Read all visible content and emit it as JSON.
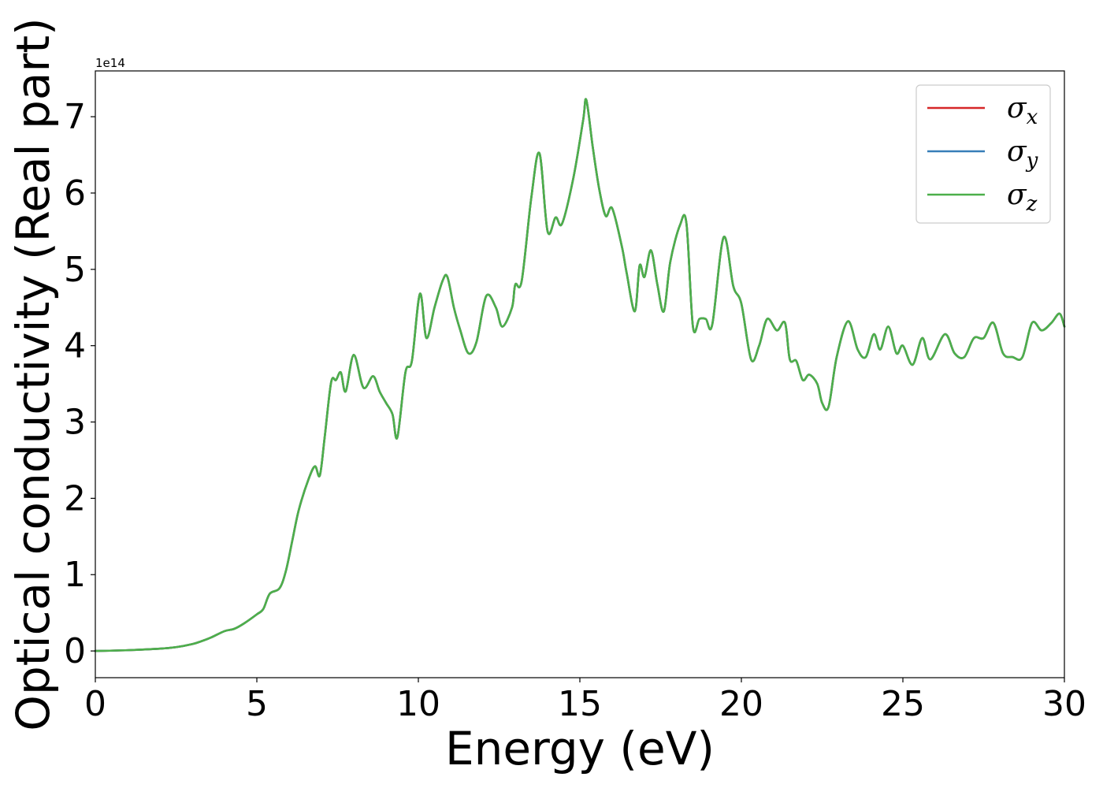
{
  "chart_data": {
    "type": "line",
    "xlabel": "Energy (eV)",
    "ylabel": "Optical conductivity (Real part)",
    "y_offset_label": "1e14",
    "y_multiplier": 100000000000000.0,
    "xlim": [
      0,
      30
    ],
    "ylim": [
      -0.35,
      7.6
    ],
    "x_ticks": [
      0,
      5,
      10,
      15,
      20,
      25,
      30
    ],
    "y_ticks": [
      0,
      1,
      2,
      3,
      4,
      5,
      6,
      7
    ],
    "grid": false,
    "legend_position": "top-right",
    "series": [
      {
        "name": "σ_x",
        "legend_symbol": "σ",
        "legend_sub": "x",
        "color": "#d62728",
        "x": [
          0,
          1,
          2,
          2.5,
          3,
          3.3,
          3.6,
          4,
          4.3,
          4.6,
          5,
          5.2,
          5.4,
          5.7,
          5.9,
          6.1,
          6.3,
          6.6,
          6.8,
          6.95,
          7.1,
          7.3,
          7.45,
          7.6,
          7.75,
          8,
          8.3,
          8.6,
          8.8,
          9,
          9.2,
          9.35,
          9.6,
          9.8,
          10.05,
          10.25,
          10.5,
          10.75,
          10.9,
          11.1,
          11.3,
          11.55,
          11.8,
          12.1,
          12.4,
          12.6,
          12.9,
          13,
          13.2,
          13.5,
          13.75,
          14,
          14.25,
          14.45,
          14.8,
          15.1,
          15.2,
          15.4,
          15.6,
          15.8,
          16,
          16.3,
          16.45,
          16.7,
          16.85,
          17,
          17.2,
          17.4,
          17.6,
          17.8,
          18.1,
          18.3,
          18.5,
          18.7,
          18.9,
          19.1,
          19.45,
          19.75,
          20,
          20.3,
          20.55,
          20.8,
          21.1,
          21.35,
          21.5,
          21.7,
          21.9,
          22.1,
          22.35,
          22.5,
          22.7,
          22.95,
          23.3,
          23.6,
          23.85,
          24.1,
          24.3,
          24.55,
          24.8,
          25,
          25.3,
          25.6,
          25.85,
          26.3,
          26.6,
          26.9,
          27.2,
          27.5,
          27.8,
          28.1,
          28.4,
          28.7,
          29,
          29.3,
          29.6,
          29.85,
          30
        ],
        "y": [
          0,
          0.01,
          0.03,
          0.05,
          0.09,
          0.13,
          0.18,
          0.26,
          0.29,
          0.36,
          0.48,
          0.55,
          0.75,
          0.82,
          1.05,
          1.45,
          1.85,
          2.25,
          2.42,
          2.3,
          2.8,
          3.52,
          3.55,
          3.65,
          3.4,
          3.88,
          3.45,
          3.6,
          3.4,
          3.25,
          3.1,
          2.8,
          3.65,
          3.8,
          4.68,
          4.1,
          4.5,
          4.85,
          4.9,
          4.5,
          4.2,
          3.9,
          4.05,
          4.65,
          4.5,
          4.25,
          4.5,
          4.8,
          4.85,
          5.95,
          6.52,
          5.5,
          5.68,
          5.6,
          6.2,
          6.95,
          7.22,
          6.6,
          6.05,
          5.7,
          5.8,
          5.3,
          4.95,
          4.45,
          5.05,
          4.9,
          5.25,
          4.8,
          4.45,
          5.1,
          5.58,
          5.6,
          4.25,
          4.35,
          4.35,
          4.28,
          5.42,
          4.78,
          4.55,
          3.82,
          4.0,
          4.35,
          4.2,
          4.3,
          3.82,
          3.8,
          3.55,
          3.62,
          3.5,
          3.25,
          3.2,
          3.85,
          4.32,
          3.95,
          3.85,
          4.15,
          3.95,
          4.25,
          3.9,
          4.0,
          3.75,
          4.1,
          3.82,
          4.15,
          3.9,
          3.85,
          4.1,
          4.1,
          4.3,
          3.9,
          3.85,
          3.85,
          4.3,
          4.2,
          4.3,
          4.42,
          4.25
        ]
      },
      {
        "name": "σ_y",
        "legend_symbol": "σ",
        "legend_sub": "y",
        "color": "#377eb8",
        "same_as": 0
      },
      {
        "name": "σ_z",
        "legend_symbol": "σ",
        "legend_sub": "z",
        "color": "#4daf4a",
        "same_as": 0
      }
    ]
  }
}
